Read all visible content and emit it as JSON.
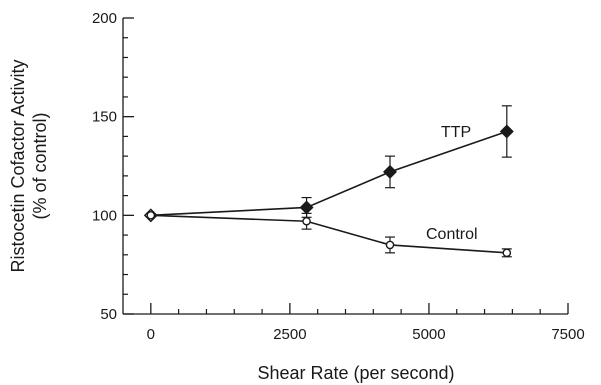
{
  "chart_data": {
    "type": "line",
    "xlabel": "Shear Rate (per second)",
    "ylabel_lines": [
      "Ristocetin Cofactor Activity",
      "(% of control)"
    ],
    "xlim": [
      -500,
      7500
    ],
    "ylim": [
      50,
      200
    ],
    "xticks": [
      0,
      2500,
      5000,
      7500
    ],
    "yticks": [
      50,
      100,
      150,
      200
    ],
    "x_minor_step": 500,
    "y_minor_step": 10,
    "grid": false,
    "series": [
      {
        "name": "TTP",
        "marker": "filled-diamond",
        "points": [
          {
            "x": 0,
            "y": 100,
            "err": 0
          },
          {
            "x": 2800,
            "y": 104,
            "err": 5
          },
          {
            "x": 4300,
            "y": 122,
            "err": 8
          },
          {
            "x": 6400,
            "y": 142.5,
            "err": 13
          }
        ]
      },
      {
        "name": "Control",
        "marker": "open-circle",
        "points": [
          {
            "x": 0,
            "y": 100,
            "err": 0
          },
          {
            "x": 2800,
            "y": 97,
            "err": 4
          },
          {
            "x": 4300,
            "y": 85,
            "err": 4
          },
          {
            "x": 6400,
            "y": 81,
            "err": 2
          }
        ]
      }
    ]
  }
}
